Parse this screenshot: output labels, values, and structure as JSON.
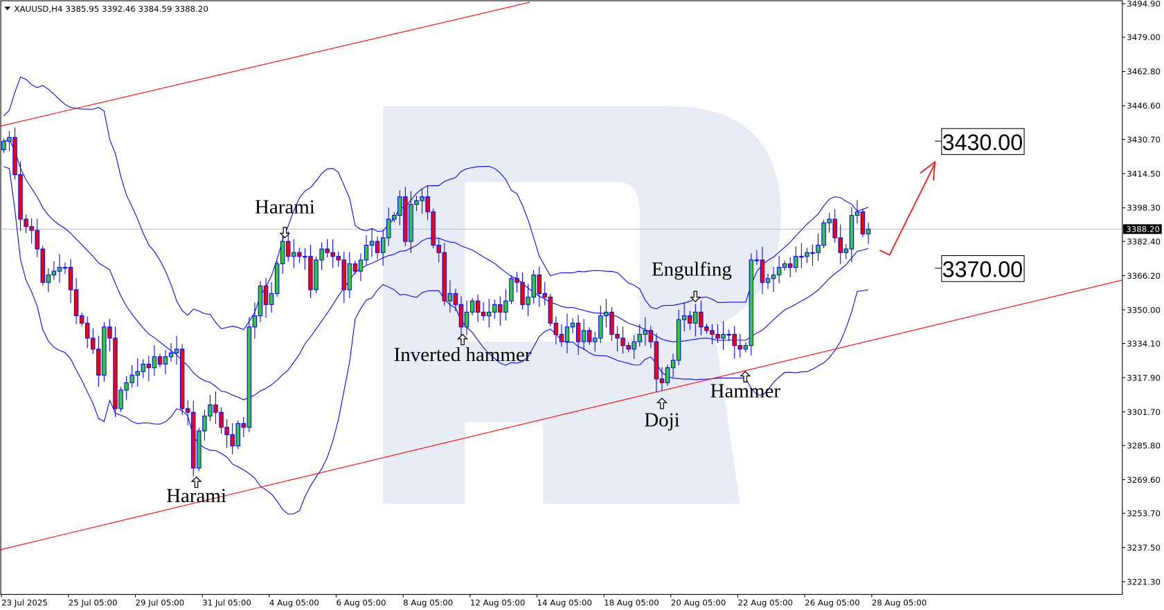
{
  "header": {
    "symbol": "XAUUSD,H4",
    "ohlc": "3385.95 3392.46 3384.59 3388.20"
  },
  "current_price": "3388.20",
  "colors": {
    "bull": "#32cd32",
    "bear": "#ff0000",
    "outline": "#0000ff",
    "bands": "#0000ff",
    "trend": "#ff0000",
    "watermark": "#e8edf5",
    "price_line": "#c0c0c0"
  },
  "chart_data": {
    "type": "candlestick",
    "symbol": "XAUUSD",
    "timeframe": "H4",
    "ylim": [
      3221.3,
      3494.9
    ],
    "y_ticks": [
      "3494.90",
      "3479.00",
      "3462.80",
      "3446.60",
      "3430.70",
      "3414.50",
      "3398.30",
      "3382.40",
      "3366.20",
      "3350.00",
      "3334.10",
      "3317.90",
      "3301.70",
      "3285.80",
      "3269.60",
      "3253.70",
      "3237.50",
      "3221.30"
    ],
    "x_ticks": [
      "23 Jul 2025",
      "25 Jul 05:00",
      "29 Jul 05:00",
      "31 Jul 05:00",
      "4 Aug 05:00",
      "6 Aug 05:00",
      "8 Aug 05:00",
      "12 Aug 05:00",
      "14 Aug 05:00",
      "18 Aug 05:00",
      "20 Aug 05:00",
      "22 Aug 05:00",
      "26 Aug 05:00",
      "28 Aug 05:00"
    ],
    "last_open": 3385.95,
    "closes": [
      3429.8,
      3431.6,
      3414.0,
      3392.9,
      3389.4,
      3387.6,
      3378.8,
      3363.0,
      3366.5,
      3368.3,
      3370.1,
      3370.1,
      3359.5,
      3347.2,
      3343.7,
      3336.6,
      3331.4,
      3319.1,
      3341.9,
      3336.6,
      3303.2,
      3312.0,
      3315.5,
      3319.1,
      3320.8,
      3324.3,
      3322.6,
      3327.8,
      3324.3,
      3327.8,
      3329.6,
      3331.4,
      3303.2,
      3301.5,
      3275.1,
      3292.7,
      3299.7,
      3305.0,
      3301.5,
      3294.4,
      3290.9,
      3285.6,
      3296.2,
      3294.4,
      3341.9,
      3347.2,
      3361.3,
      3352.5,
      3357.7,
      3371.8,
      3382.4,
      3375.3,
      3377.1,
      3375.3,
      3375.3,
      3359.5,
      3373.6,
      3378.8,
      3377.1,
      3375.3,
      3373.6,
      3359.5,
      3371.8,
      3368.3,
      3373.6,
      3380.6,
      3382.4,
      3377.1,
      3384.1,
      3392.9,
      3394.7,
      3403.5,
      3382.4,
      3399.9,
      3401.7,
      3403.5,
      3396.4,
      3380.6,
      3377.1,
      3354.2,
      3357.7,
      3352.5,
      3341.9,
      3348.9,
      3354.2,
      3348.9,
      3347.2,
      3348.9,
      3352.5,
      3348.9,
      3354.2,
      3364.8,
      3363.0,
      3352.5,
      3356.0,
      3366.5,
      3357.7,
      3356.0,
      3343.7,
      3338.4,
      3334.9,
      3341.9,
      3343.7,
      3334.9,
      3340.2,
      3334.9,
      3336.6,
      3347.2,
      3348.9,
      3338.4,
      3336.6,
      3333.1,
      3331.4,
      3334.9,
      3338.4,
      3340.2,
      3334.9,
      3317.3,
      3315.5,
      3322.6,
      3326.1,
      3345.4,
      3347.2,
      3343.7,
      3348.9,
      3341.9,
      3340.2,
      3338.4,
      3336.6,
      3338.4,
      3338.4,
      3333.1,
      3331.4,
      3333.1,
      3373.6,
      3373.6,
      3363.0,
      3364.8,
      3366.5,
      3370.1,
      3371.8,
      3370.1,
      3375.3,
      3375.3,
      3377.1,
      3377.1,
      3380.6,
      3391.2,
      3392.9,
      3384.1,
      3377.1,
      3378.8,
      3394.7,
      3396.4,
      3385.9,
      3388.2
    ],
    "indicator": "Bollinger Bands (20, 2)",
    "trendlines": [
      {
        "role": "channel-top",
        "from": {
          "bar": -0.7,
          "price": 3436.9
        },
        "to": {
          "bar": 94.3,
          "price": 3495.6
        }
      },
      {
        "role": "channel-bottom",
        "from": {
          "bar": -0.7,
          "price": 3236.4
        },
        "to": {
          "bar": 200.5,
          "price": 3364.1
        }
      }
    ],
    "patterns": [
      {
        "label": "Harami",
        "bar": 50,
        "direction": "down"
      },
      {
        "label": "Harami",
        "bar": 34,
        "direction": "up"
      },
      {
        "label": "Inverted hammer",
        "bar": 82,
        "direction": "up"
      },
      {
        "label": "Doji",
        "bar": 118,
        "direction": "up"
      },
      {
        "label": "Engulfing",
        "bar": 124,
        "direction": "down"
      },
      {
        "label": "Hammer",
        "bar": 133,
        "direction": "up"
      }
    ],
    "targets": [
      "3430.00",
      "3370.00"
    ]
  }
}
